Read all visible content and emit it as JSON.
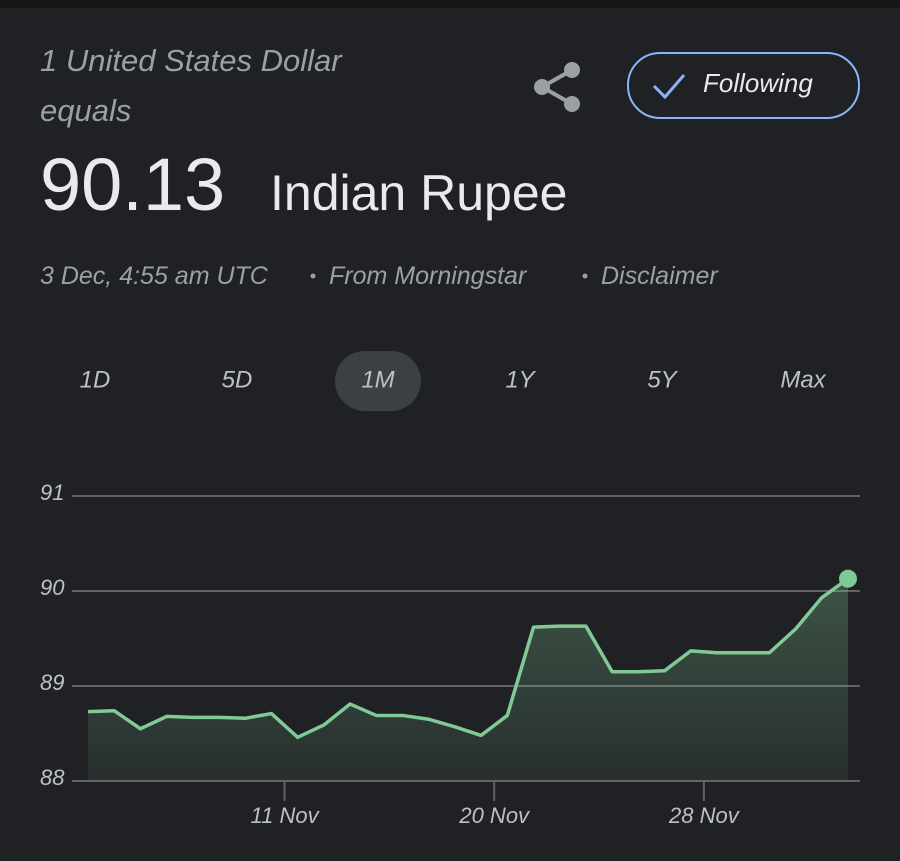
{
  "header": {
    "line1": "1 United States Dollar",
    "line2": "equals",
    "rate": "90.13",
    "currency": "Indian Rupee",
    "timestamp": "3 Dec, 4:55 am UTC",
    "source": "From Morningstar",
    "disclaimer": "Disclaimer",
    "follow": "Following"
  },
  "tabs": [
    "1D",
    "5D",
    "1M",
    "1Y",
    "5Y",
    "Max"
  ],
  "selected_tab": 2,
  "chart_data": {
    "type": "line",
    "color": "#81c995",
    "x": [
      0,
      1,
      2,
      3,
      4,
      5,
      6,
      7,
      8,
      9,
      10,
      11,
      12,
      13,
      14,
      15,
      16,
      17,
      18,
      19,
      20,
      21,
      22,
      23,
      24,
      25,
      26,
      27,
      28,
      29
    ],
    "values": [
      88.73,
      88.74,
      88.55,
      88.68,
      88.67,
      88.67,
      88.66,
      88.71,
      88.46,
      88.59,
      88.81,
      88.69,
      88.69,
      88.65,
      88.57,
      88.48,
      88.69,
      89.62,
      89.63,
      89.63,
      89.15,
      89.15,
      89.16,
      89.37,
      89.35,
      89.35,
      89.35,
      89.6,
      89.93,
      90.13
    ],
    "xlim": [
      0,
      29
    ],
    "ylim": [
      88,
      91
    ],
    "yticks": [
      88,
      89,
      90,
      91
    ],
    "xticks": [
      {
        "value": 7.5,
        "label": "11 Nov"
      },
      {
        "value": 15.5,
        "label": "20 Nov"
      },
      {
        "value": 23.5,
        "label": "28 Nov"
      }
    ],
    "grid": true
  }
}
